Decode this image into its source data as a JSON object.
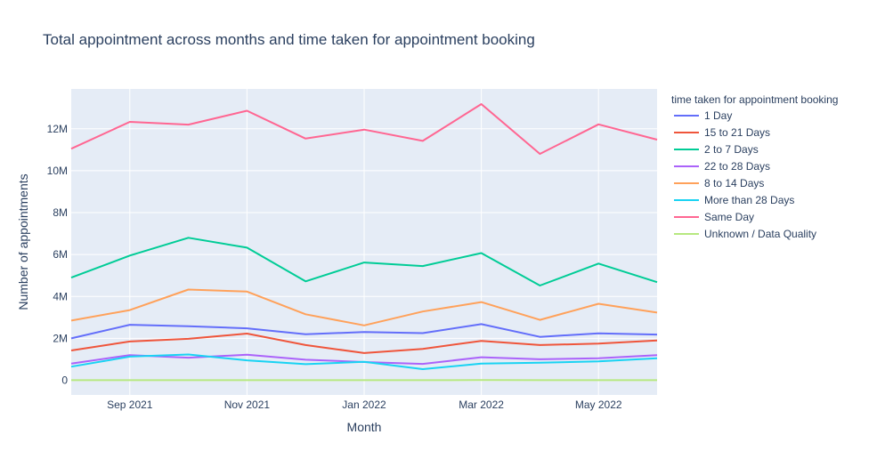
{
  "chart_data": {
    "type": "line",
    "title": "Total appointment across months and time taken for appointment booking",
    "xlabel": "Month",
    "ylabel": "Number of appointments",
    "x": [
      "2021-08",
      "2021-09",
      "2021-10",
      "2021-11",
      "2021-12",
      "2022-01",
      "2022-02",
      "2022-03",
      "2022-04",
      "2022-05",
      "2022-06"
    ],
    "x_ticks": [
      {
        "month_index": 1,
        "label": "Sep 2021"
      },
      {
        "month_index": 3,
        "label": "Nov 2021"
      },
      {
        "month_index": 5,
        "label": "Jan 2022"
      },
      {
        "month_index": 7,
        "label": "Mar 2022"
      },
      {
        "month_index": 9,
        "label": "May 2022"
      }
    ],
    "y_ticks": [
      {
        "value": 0,
        "label": "0"
      },
      {
        "value": 2000000,
        "label": "2M"
      },
      {
        "value": 4000000,
        "label": "4M"
      },
      {
        "value": 6000000,
        "label": "6M"
      },
      {
        "value": 8000000,
        "label": "8M"
      },
      {
        "value": 10000000,
        "label": "10M"
      },
      {
        "value": 12000000,
        "label": "12M"
      }
    ],
    "ylim": [
      -700000,
      13900000
    ],
    "xlim": [
      "2021-08",
      "2022-06"
    ],
    "grid": true,
    "legend": {
      "title": "time taken for appointment booking",
      "placement": "right"
    },
    "series": [
      {
        "name": "1 Day",
        "color": "#636efa",
        "values": [
          2000000,
          2650000,
          2580000,
          2480000,
          2200000,
          2300000,
          2250000,
          2680000,
          2070000,
          2240000,
          2180000
        ]
      },
      {
        "name": "15  to 21 Days",
        "color": "#EF553B",
        "values": [
          1420000,
          1850000,
          1980000,
          2230000,
          1680000,
          1300000,
          1500000,
          1880000,
          1680000,
          1750000,
          1900000
        ]
      },
      {
        "name": "2 to 7 Days",
        "color": "#00cc96",
        "values": [
          4900000,
          5950000,
          6800000,
          6330000,
          4720000,
          5620000,
          5450000,
          6070000,
          4520000,
          5570000,
          4680000
        ]
      },
      {
        "name": "22  to 28 Days",
        "color": "#ab63fa",
        "values": [
          800000,
          1200000,
          1080000,
          1220000,
          980000,
          870000,
          780000,
          1100000,
          1000000,
          1050000,
          1200000
        ]
      },
      {
        "name": "8  to 14 Days",
        "color": "#FFA15A",
        "values": [
          2850000,
          3350000,
          4330000,
          4230000,
          3150000,
          2620000,
          3280000,
          3730000,
          2880000,
          3650000,
          3230000
        ]
      },
      {
        "name": "More than 28 Days",
        "color": "#19d3f3",
        "values": [
          650000,
          1130000,
          1230000,
          950000,
          770000,
          880000,
          530000,
          800000,
          840000,
          900000,
          1050000
        ]
      },
      {
        "name": "Same Day",
        "color": "#FF6692",
        "values": [
          11050000,
          12330000,
          12200000,
          12860000,
          11530000,
          11960000,
          11420000,
          13180000,
          10800000,
          12210000,
          11480000
        ]
      },
      {
        "name": "Unknown / Data Quality",
        "color": "#B6E880",
        "values": [
          5000,
          6000,
          6000,
          6000,
          5000,
          6000,
          5000,
          7000,
          6000,
          6000,
          6000
        ]
      }
    ]
  }
}
